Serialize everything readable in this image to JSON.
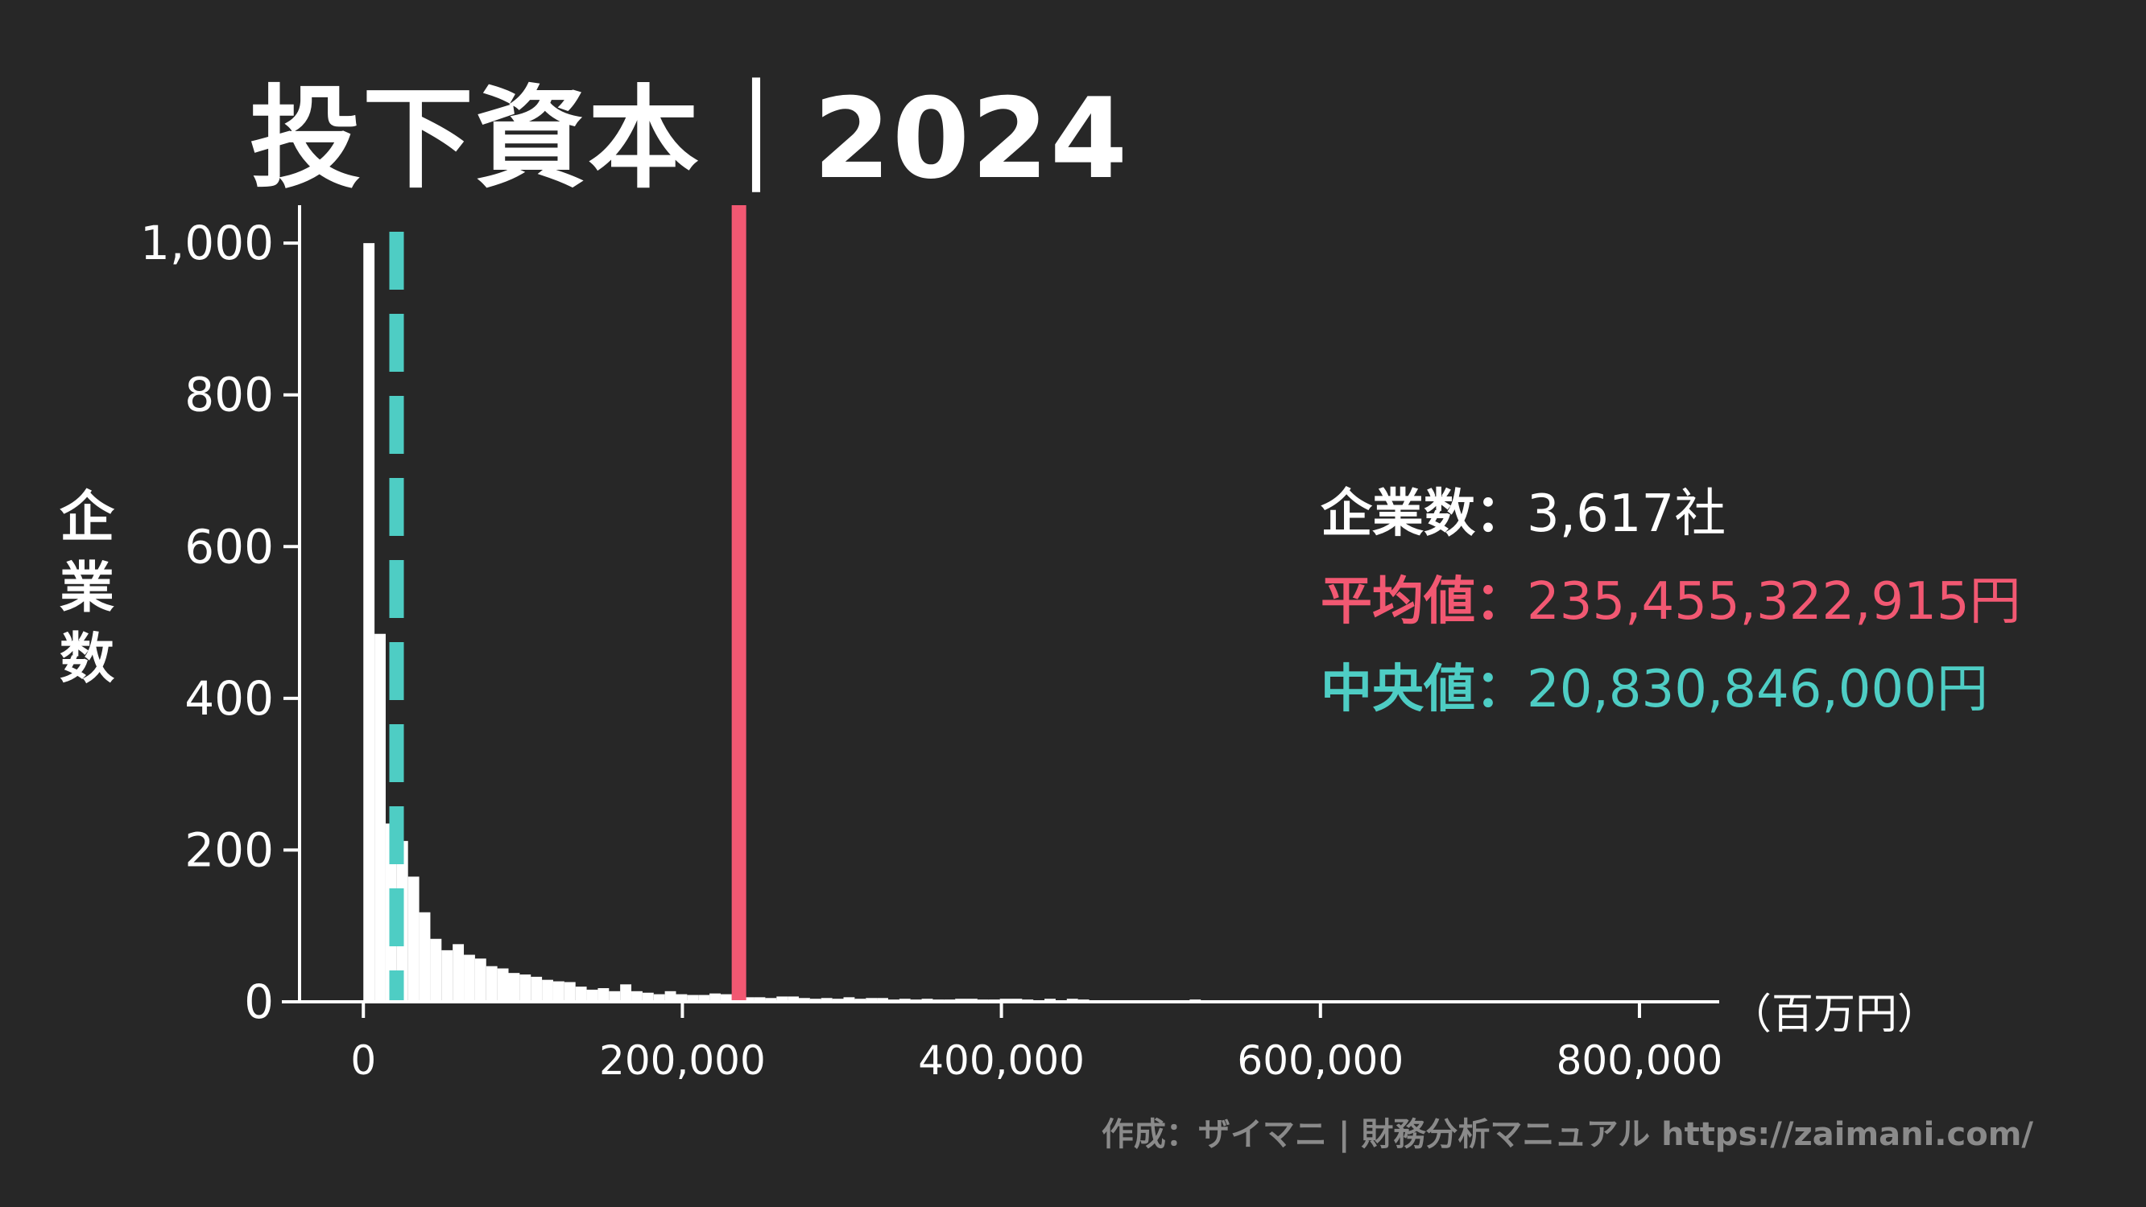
{
  "title": "投下資本｜2024",
  "stats": {
    "count_label": "企業数：",
    "count_value": "3,617社",
    "mean_label": "平均値：",
    "mean_value": "235,455,322,915円",
    "median_label": "中央値：",
    "median_value": "20,830,846,000円"
  },
  "credit": "作成：ザイマニ | 財務分析マニュアル https://zaimani.com/",
  "colors": {
    "background": "#272727",
    "bars": "#ffffff",
    "mean": "#f25872",
    "median": "#4ecdc4",
    "credit": "#8a8a8a"
  },
  "chart_data": {
    "type": "bar",
    "ylabel": "企業数",
    "xlabel": "（百万円）",
    "xlim": [
      -40000,
      850000
    ],
    "ylim": [
      0,
      1050
    ],
    "xticks": [
      0,
      200000,
      400000,
      600000,
      800000
    ],
    "xtick_labels": [
      "0",
      "200,000",
      "400,000",
      "600,000",
      "800,000"
    ],
    "yticks": [
      0,
      200,
      400,
      600,
      800,
      1000
    ],
    "ytick_labels": [
      "0",
      "200",
      "400",
      "600",
      "800",
      "1,000"
    ],
    "bin_start": 0,
    "bin_width": 7000,
    "values": [
      1000,
      485,
      235,
      212,
      165,
      118,
      83,
      68,
      76,
      62,
      57,
      47,
      44,
      38,
      36,
      33,
      29,
      27,
      26,
      20,
      16,
      18,
      14,
      23,
      14,
      12,
      10,
      14,
      10,
      9,
      9,
      11,
      10,
      7,
      6,
      6,
      5,
      7,
      7,
      5,
      4,
      5,
      4,
      6,
      4,
      5,
      5,
      3,
      4,
      3,
      4,
      3,
      3,
      4,
      4,
      3,
      3,
      4,
      4,
      3,
      2,
      4,
      2,
      4,
      3,
      2,
      2,
      2,
      2,
      2,
      2,
      2,
      2,
      2,
      3,
      2,
      2,
      2,
      2,
      2,
      2,
      2,
      2,
      2,
      2,
      2,
      2,
      2,
      2,
      2,
      2,
      2,
      2,
      2,
      2,
      2,
      2,
      2,
      2,
      2,
      2,
      2,
      2,
      2,
      2,
      2,
      2,
      2,
      2,
      2,
      2,
      2,
      2,
      2,
      2,
      2,
      2,
      2,
      2,
      2
    ],
    "mean": 235455,
    "median": 20831
  }
}
